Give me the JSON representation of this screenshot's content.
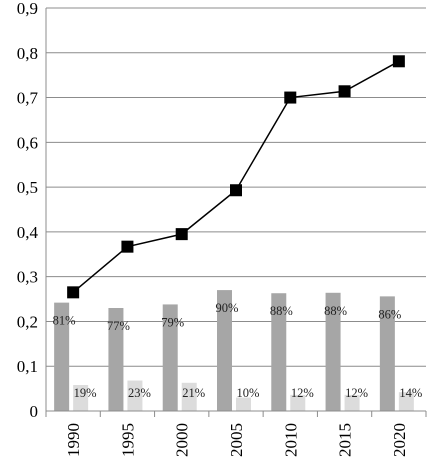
{
  "chart_data": {
    "type": "bar",
    "categories": [
      "1990",
      "1995",
      "2000",
      "2005",
      "2010",
      "2015",
      "2020"
    ],
    "ylim": [
      0,
      0.9
    ],
    "yticks": [
      "0",
      "0,1",
      "0,2",
      "0,3",
      "0,4",
      "0,5",
      "0,6",
      "0,7",
      "0,8",
      "0,9"
    ],
    "grid": true,
    "legend": "none",
    "colors": {
      "dark_bar": "#a6a6a6",
      "light_bar": "#dcdcdc",
      "line": "#000000"
    },
    "series": [
      {
        "type": "line",
        "marker": "square",
        "values": [
          0.265,
          0.367,
          0.395,
          0.493,
          0.7,
          0.714,
          0.781
        ]
      },
      {
        "type": "bar",
        "values": [
          0.242,
          0.23,
          0.238,
          0.27,
          0.263,
          0.264,
          0.256
        ],
        "labels": [
          "81%",
          "77%",
          "79%",
          "90%",
          "88%",
          "88%",
          "86%"
        ]
      },
      {
        "type": "bar",
        "values": [
          0.058,
          0.068,
          0.063,
          0.03,
          0.036,
          0.036,
          0.042
        ],
        "labels": [
          "19%",
          "23%",
          "21%",
          "10%",
          "12%",
          "12%",
          "14%"
        ]
      }
    ]
  }
}
